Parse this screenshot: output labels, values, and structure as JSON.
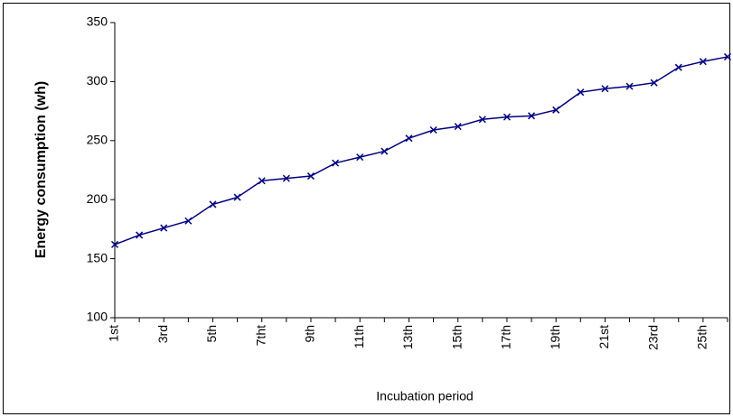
{
  "chart_data": {
    "type": "line",
    "x_label": "Incubation period",
    "y_label": "Energy  consumption (wh)",
    "categories": [
      "1st",
      null,
      "3rd",
      null,
      "5th",
      null,
      "7tht",
      null,
      "9th",
      null,
      "11th",
      null,
      "13th",
      null,
      "15th",
      null,
      "17th",
      null,
      "19th",
      null,
      "21st",
      null,
      "23rd",
      null,
      "25th",
      null
    ],
    "values": [
      162,
      170,
      176,
      182,
      196,
      202,
      216,
      218,
      220,
      231,
      236,
      241,
      252,
      259,
      262,
      268,
      270,
      271,
      276,
      291,
      294,
      296,
      299,
      312,
      317,
      321
    ],
    "color": "#000080",
    "ylim": [
      100,
      350
    ],
    "yticks": [
      100,
      150,
      200,
      250,
      300,
      350
    ],
    "grid": false
  }
}
